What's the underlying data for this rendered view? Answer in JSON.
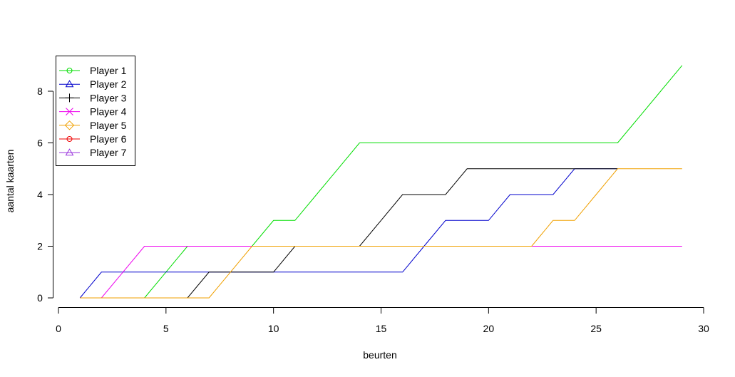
{
  "chart_data": {
    "type": "line",
    "title": "",
    "xlabel": "beurten",
    "ylabel": "aantal kaarten",
    "xlim": [
      0,
      30
    ],
    "ylim": [
      0,
      9
    ],
    "x_ticks": [
      0,
      5,
      10,
      15,
      20,
      25,
      30
    ],
    "y_ticks": [
      0,
      2,
      4,
      6,
      8
    ],
    "grid": false,
    "legend_position": "top-left",
    "series": [
      {
        "name": "Player 1",
        "color": "#00dd00",
        "marker": "circle",
        "x": [
          1,
          2,
          3,
          4,
          5,
          6,
          7,
          8,
          9,
          10,
          11,
          12,
          13,
          14,
          15,
          16,
          17,
          18,
          19,
          20,
          21,
          22,
          23,
          24,
          25,
          26,
          27,
          28,
          29
        ],
        "values": [
          0,
          0,
          0,
          0,
          1,
          2,
          2,
          2,
          2,
          3,
          3,
          4,
          5,
          6,
          6,
          6,
          6,
          6,
          6,
          6,
          6,
          6,
          6,
          6,
          6,
          6,
          7,
          8,
          9
        ]
      },
      {
        "name": "Player 2",
        "color": "#0000cc",
        "marker": "triangle",
        "x": [
          1,
          2,
          3,
          4,
          5,
          6,
          7,
          8,
          9,
          10,
          11,
          12,
          13,
          14,
          15,
          16,
          17,
          18,
          19,
          20,
          21,
          22,
          23,
          24,
          25,
          26
        ],
        "values": [
          0,
          1,
          1,
          1,
          1,
          1,
          1,
          1,
          1,
          1,
          1,
          1,
          1,
          1,
          1,
          1,
          2,
          3,
          3,
          3,
          4,
          4,
          4,
          5,
          5,
          5
        ]
      },
      {
        "name": "Player 3",
        "color": "#000000",
        "marker": "plus",
        "x": [
          1,
          2,
          3,
          4,
          5,
          6,
          7,
          8,
          9,
          10,
          11,
          12,
          13,
          14,
          15,
          16,
          17,
          18,
          19,
          20,
          21,
          22,
          23,
          24,
          25,
          26
        ],
        "values": [
          0,
          0,
          0,
          0,
          0,
          0,
          1,
          1,
          1,
          1,
          2,
          2,
          2,
          2,
          3,
          4,
          4,
          4,
          5,
          5,
          5,
          5,
          5,
          5,
          5,
          5
        ]
      },
      {
        "name": "Player 4",
        "color": "#ee00ee",
        "marker": "cross",
        "x": [
          1,
          2,
          3,
          4,
          5,
          6,
          7,
          8,
          9,
          10,
          11,
          12,
          13,
          14,
          15,
          16,
          17,
          18,
          19,
          20,
          21,
          22,
          23,
          24,
          25,
          26,
          27,
          28,
          29
        ],
        "values": [
          0,
          0,
          1,
          2,
          2,
          2,
          2,
          2,
          2,
          2,
          2,
          2,
          2,
          2,
          2,
          2,
          2,
          2,
          2,
          2,
          2,
          2,
          2,
          2,
          2,
          2,
          2,
          2,
          2
        ]
      },
      {
        "name": "Player 5",
        "color": "#f0a000",
        "marker": "diamond",
        "x": [
          1,
          2,
          3,
          4,
          5,
          6,
          7,
          8,
          9,
          10,
          11,
          12,
          13,
          14,
          15,
          16,
          17,
          18,
          19,
          20,
          21,
          22,
          23,
          24,
          25,
          26,
          27,
          28,
          29
        ],
        "values": [
          0,
          0,
          0,
          0,
          0,
          0,
          0,
          1,
          2,
          2,
          2,
          2,
          2,
          2,
          2,
          2,
          2,
          2,
          2,
          2,
          2,
          2,
          3,
          3,
          4,
          5,
          5,
          5,
          5
        ]
      },
      {
        "name": "Player 6",
        "color": "#ee0000",
        "marker": "circle",
        "x": [],
        "values": []
      },
      {
        "name": "Player 7",
        "color": "#9933dd",
        "marker": "triangle",
        "x": [],
        "values": []
      }
    ]
  }
}
